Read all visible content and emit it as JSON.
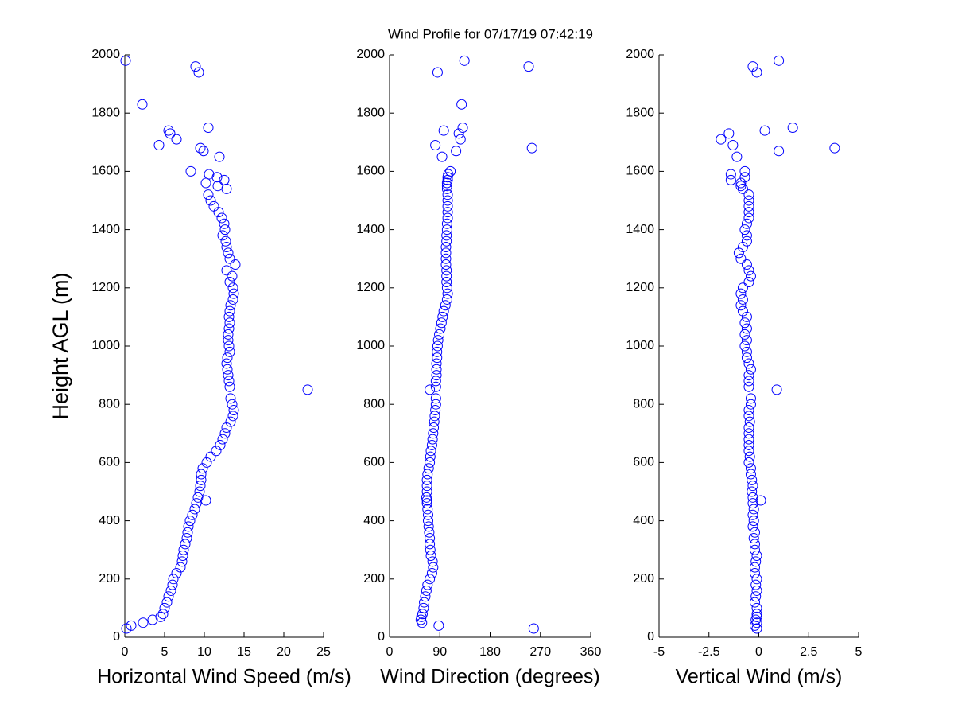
{
  "title": "Wind Profile for  07/17/19 07:42:19",
  "chart_data": [
    {
      "type": "scatter",
      "xlabel": "Horizontal Wind Speed (m/s)",
      "ylabel": "Height AGL (m)",
      "color": "#0000ff",
      "xlim": [
        0,
        25
      ],
      "xticks": [
        0,
        5,
        10,
        15,
        20,
        25
      ],
      "ylim": [
        0,
        2000
      ],
      "yticks": [
        0,
        200,
        400,
        600,
        800,
        1000,
        1200,
        1400,
        1600,
        1800,
        2000
      ],
      "x": [
        0.2,
        0.8,
        2.3,
        3.5,
        4.5,
        4.8,
        5,
        5.3,
        5.5,
        5.8,
        6,
        6.1,
        6.5,
        7,
        7.2,
        7.3,
        7.4,
        7.6,
        7.8,
        7.9,
        8,
        8.2,
        8.5,
        8.8,
        9,
        10.2,
        9.2,
        9.4,
        9.5,
        9.6,
        9.6,
        9.8,
        10.3,
        10.8,
        11.5,
        12,
        12.3,
        12.6,
        12.8,
        13.3,
        13.6,
        13.7,
        13.5,
        13.3,
        23,
        13.2,
        13.1,
        13,
        12.9,
        12.8,
        12.9,
        13.2,
        13.1,
        13,
        13,
        13.1,
        13.2,
        13.1,
        13.2,
        13.3,
        13.6,
        13.7,
        13.6,
        13.2,
        13.5,
        12.8,
        13.9,
        13.2,
        13,
        12.8,
        12.7,
        12.3,
        12.6,
        12.5,
        12.2,
        11.8,
        11.2,
        10.8,
        10.5,
        12.8,
        11.7,
        10.2,
        12.5,
        11.6,
        10.6,
        8.3,
        11.9,
        9.9,
        9.5,
        4.3,
        6.5,
        5.7,
        5.5,
        10.5,
        2.2,
        9.3,
        8.9,
        0.1
      ],
      "y": [
        30,
        40,
        50,
        60,
        70,
        80,
        100,
        120,
        140,
        160,
        180,
        200,
        220,
        240,
        260,
        280,
        300,
        320,
        340,
        360,
        380,
        400,
        420,
        440,
        460,
        470,
        480,
        500,
        520,
        540,
        560,
        580,
        600,
        620,
        640,
        660,
        680,
        700,
        720,
        740,
        760,
        780,
        800,
        820,
        850,
        860,
        880,
        900,
        920,
        940,
        960,
        980,
        1000,
        1020,
        1040,
        1060,
        1080,
        1100,
        1120,
        1140,
        1160,
        1180,
        1200,
        1220,
        1240,
        1260,
        1280,
        1300,
        1320,
        1340,
        1360,
        1380,
        1400,
        1420,
        1440,
        1460,
        1480,
        1500,
        1520,
        1540,
        1550,
        1560,
        1570,
        1580,
        1590,
        1600,
        1650,
        1670,
        1680,
        1690,
        1710,
        1730,
        1740,
        1750,
        1830,
        1940,
        1960,
        1980
      ]
    },
    {
      "type": "scatter",
      "xlabel": "Wind Direction (degrees)",
      "color": "#0000ff",
      "xlim": [
        0,
        360
      ],
      "xticks": [
        0,
        90,
        180,
        270,
        360
      ],
      "ylim": [
        0,
        2000
      ],
      "yticks": [
        0,
        200,
        400,
        600,
        800,
        1000,
        1200,
        1400,
        1600,
        1800,
        2000
      ],
      "x": [
        258,
        88,
        58,
        56,
        57,
        59,
        61,
        62,
        64,
        66,
        68,
        72,
        76,
        78,
        77,
        74,
        73,
        72,
        72,
        71,
        70,
        69,
        69,
        68,
        67,
        67,
        66,
        67,
        67,
        67,
        68,
        70,
        72,
        73,
        74,
        76,
        77,
        78,
        79,
        80,
        81,
        82,
        83,
        83,
        72,
        83,
        83,
        84,
        84,
        84,
        85,
        85,
        86,
        87,
        89,
        91,
        93,
        95,
        97,
        100,
        103,
        104,
        103,
        102,
        102,
        102,
        101,
        101,
        101,
        101,
        102,
        102,
        103,
        103,
        104,
        104,
        104,
        104,
        104,
        103,
        103,
        103,
        104,
        104,
        105,
        109,
        94,
        119,
        255,
        82,
        127,
        124,
        97,
        131,
        129,
        86,
        249,
        134
      ],
      "y": [
        30,
        40,
        50,
        60,
        70,
        80,
        100,
        120,
        140,
        160,
        180,
        200,
        220,
        240,
        260,
        280,
        300,
        320,
        340,
        360,
        380,
        400,
        420,
        440,
        460,
        470,
        480,
        500,
        520,
        540,
        560,
        580,
        600,
        620,
        640,
        660,
        680,
        700,
        720,
        740,
        760,
        780,
        800,
        820,
        850,
        860,
        880,
        900,
        920,
        940,
        960,
        980,
        1000,
        1020,
        1040,
        1060,
        1080,
        1100,
        1120,
        1140,
        1160,
        1180,
        1200,
        1220,
        1240,
        1260,
        1280,
        1300,
        1320,
        1340,
        1360,
        1380,
        1400,
        1420,
        1440,
        1460,
        1480,
        1500,
        1520,
        1540,
        1550,
        1560,
        1570,
        1580,
        1590,
        1600,
        1650,
        1670,
        1680,
        1690,
        1710,
        1730,
        1740,
        1750,
        1830,
        1940,
        1960,
        1980
      ]
    },
    {
      "type": "scatter",
      "xlabel": "Vertical Wind (m/s)",
      "color": "#0000ff",
      "xlim": [
        -5,
        5
      ],
      "xticks": [
        -5,
        -2.5,
        0,
        2.5,
        5
      ],
      "ylim": [
        0,
        2000
      ],
      "yticks": [
        0,
        200,
        400,
        600,
        800,
        1000,
        1200,
        1400,
        1600,
        1800,
        2000
      ],
      "x": [
        -0.1,
        -0.2,
        -0.1,
        -0.15,
        -0.1,
        -0.1,
        -0.1,
        -0.2,
        -0.15,
        -0.1,
        -0.15,
        -0.1,
        -0.2,
        -0.2,
        -0.15,
        -0.1,
        -0.2,
        -0.2,
        -0.25,
        -0.2,
        -0.3,
        -0.25,
        -0.3,
        -0.25,
        -0.3,
        0.1,
        -0.3,
        -0.35,
        -0.3,
        -0.35,
        -0.4,
        -0.4,
        -0.5,
        -0.45,
        -0.5,
        -0.5,
        -0.5,
        -0.5,
        -0.5,
        -0.45,
        -0.5,
        -0.5,
        -0.4,
        -0.4,
        0.9,
        -0.5,
        -0.5,
        -0.5,
        -0.4,
        -0.5,
        -0.6,
        -0.6,
        -0.7,
        -0.6,
        -0.7,
        -0.6,
        -0.7,
        -0.6,
        -0.8,
        -0.9,
        -0.8,
        -0.9,
        -0.8,
        -0.5,
        -0.4,
        -0.5,
        -0.6,
        -0.9,
        -1.0,
        -0.8,
        -0.6,
        -0.6,
        -0.7,
        -0.6,
        -0.5,
        -0.5,
        -0.5,
        -0.5,
        -0.5,
        -0.8,
        -0.9,
        -0.9,
        -1.4,
        -0.7,
        -1.4,
        -0.7,
        -1.1,
        1.0,
        3.8,
        -1.3,
        -1.9,
        -1.5,
        0.3,
        1.7,
        null,
        -0.1,
        -0.3,
        1.0
      ],
      "y": [
        30,
        40,
        50,
        60,
        70,
        80,
        100,
        120,
        140,
        160,
        180,
        200,
        220,
        240,
        260,
        280,
        300,
        320,
        340,
        360,
        380,
        400,
        420,
        440,
        460,
        470,
        480,
        500,
        520,
        540,
        560,
        580,
        600,
        620,
        640,
        660,
        680,
        700,
        720,
        740,
        760,
        780,
        800,
        820,
        850,
        860,
        880,
        900,
        920,
        940,
        960,
        980,
        1000,
        1020,
        1040,
        1060,
        1080,
        1100,
        1120,
        1140,
        1160,
        1180,
        1200,
        1220,
        1240,
        1260,
        1280,
        1300,
        1320,
        1340,
        1360,
        1380,
        1400,
        1420,
        1440,
        1460,
        1480,
        1500,
        1520,
        1540,
        1550,
        1560,
        1570,
        1580,
        1590,
        1600,
        1650,
        1670,
        1680,
        1690,
        1710,
        1730,
        1740,
        1750,
        1830,
        1940,
        1960,
        1980
      ]
    }
  ]
}
